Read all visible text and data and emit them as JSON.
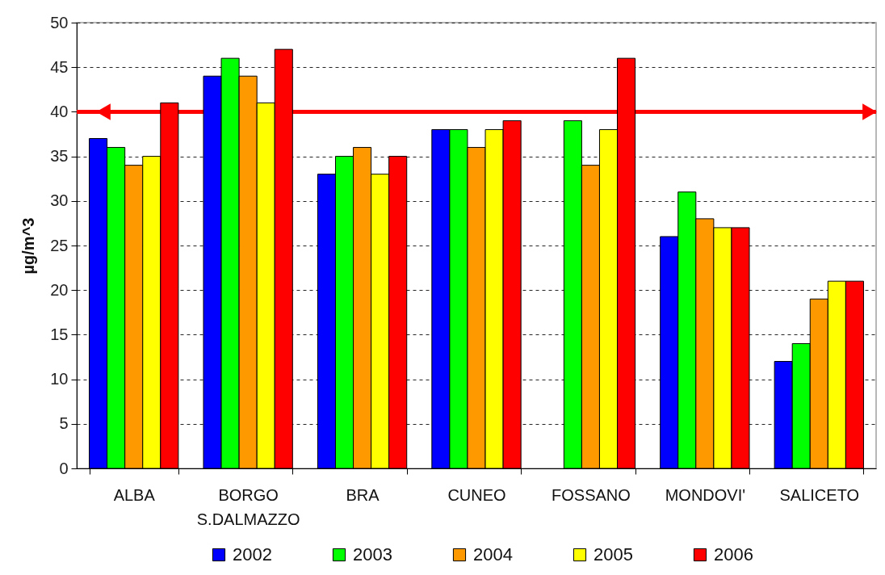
{
  "chart_data": {
    "type": "bar",
    "ylabel": "µg/m^3",
    "categories": [
      "ALBA",
      "BORGO S.DALMAZZO",
      "BRA",
      "CUNEO",
      "FOSSANO",
      "MONDOVI'",
      "SALICETO"
    ],
    "series": [
      {
        "name": "2002",
        "color": "#0000ff",
        "values": [
          37,
          44,
          33,
          38,
          null,
          26,
          12
        ]
      },
      {
        "name": "2003",
        "color": "#00ff00",
        "values": [
          36,
          46,
          35,
          38,
          39,
          31,
          14
        ]
      },
      {
        "name": "2004",
        "color": "#ff9900",
        "values": [
          34,
          44,
          36,
          36,
          34,
          28,
          19
        ]
      },
      {
        "name": "2005",
        "color": "#ffff00",
        "values": [
          35,
          41,
          33,
          38,
          38,
          27,
          21
        ]
      },
      {
        "name": "2006",
        "color": "#ff0000",
        "values": [
          41,
          47,
          35,
          39,
          46,
          27,
          21
        ]
      }
    ],
    "ylim": [
      0,
      50
    ],
    "yticks": [
      0,
      5,
      10,
      15,
      20,
      25,
      30,
      35,
      40,
      45,
      50
    ],
    "grid": "y",
    "legend": "bottom",
    "ref_lines": [
      {
        "axis": "y",
        "value": 40,
        "color": "#ff0000"
      }
    ]
  }
}
